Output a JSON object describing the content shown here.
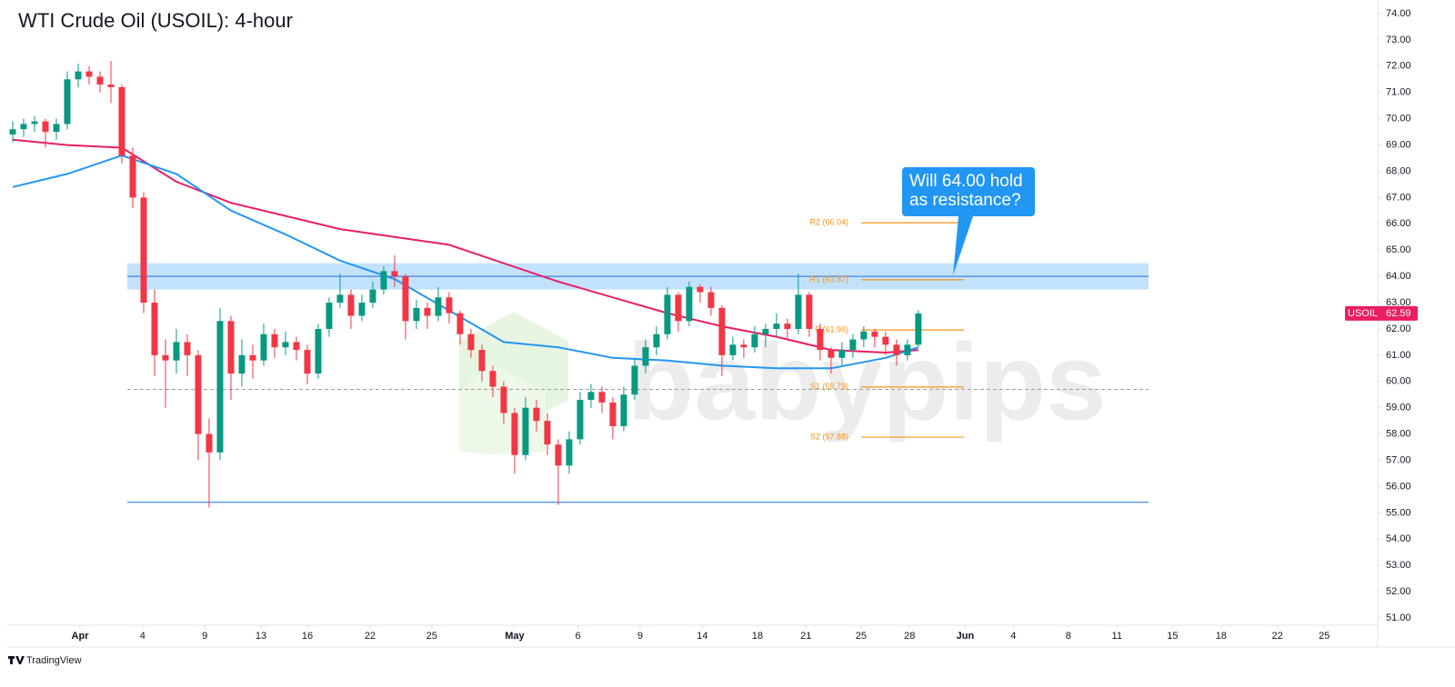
{
  "chart_data": {
    "type": "candlestick",
    "title": "WTI Crude Oil (USOIL): 4-hour",
    "symbol": "USOIL",
    "up_color": "#089981",
    "down_color": "#f23645",
    "open": [
      69.4,
      69.6,
      69.8,
      69.9,
      69.5,
      69.8,
      71.5,
      71.8,
      71.6,
      71.3,
      71.2,
      68.6,
      67.0,
      63.0,
      61.0,
      60.8,
      61.5,
      61.0,
      58.0,
      57.3,
      62.3,
      60.3,
      61.0,
      60.8,
      61.8,
      61.3,
      61.5,
      61.2,
      60.3,
      62.0,
      63.0,
      63.3,
      62.5,
      63.0,
      63.5,
      64.2,
      64.0,
      62.3,
      62.8,
      62.5,
      63.2,
      62.6,
      61.8,
      61.2,
      60.4,
      59.8,
      58.8,
      57.2,
      59.0,
      58.5,
      57.6,
      56.8,
      57.8,
      59.3,
      59.6,
      59.2,
      58.3,
      59.5,
      60.6,
      61.3,
      61.8,
      63.3,
      62.3,
      63.6,
      63.4,
      62.8,
      61.0,
      61.4,
      61.3,
      61.8,
      62.0,
      62.2,
      62.0,
      63.3,
      62.0,
      61.2,
      60.9,
      61.2,
      61.6,
      61.9,
      61.7,
      61.4,
      61.0,
      61.4
    ],
    "high": [
      69.9,
      70.0,
      70.1,
      70.0,
      70.0,
      71.8,
      72.1,
      72.0,
      71.8,
      72.2,
      71.3,
      68.9,
      67.2,
      63.5,
      61.6,
      62.0,
      61.8,
      61.2,
      58.6,
      62.8,
      62.5,
      61.6,
      61.4,
      62.2,
      62.0,
      61.9,
      61.7,
      61.4,
      62.2,
      63.2,
      64.1,
      63.5,
      63.3,
      63.8,
      64.4,
      64.8,
      64.1,
      63.1,
      63.0,
      63.6,
      63.4,
      62.7,
      62.0,
      61.4,
      60.6,
      60.0,
      59.0,
      59.4,
      59.3,
      58.8,
      57.8,
      58.1,
      59.6,
      59.9,
      59.8,
      59.4,
      59.8,
      60.9,
      61.6,
      62.1,
      63.6,
      63.4,
      63.8,
      63.7,
      63.6,
      62.9,
      61.7,
      61.6,
      62.1,
      62.2,
      62.6,
      62.4,
      64.1,
      63.4,
      62.2,
      61.3,
      61.5,
      61.8,
      62.1,
      62.0,
      61.9,
      61.6,
      61.6,
      62.7
    ],
    "low": [
      69.1,
      69.3,
      69.5,
      68.9,
      69.2,
      69.6,
      71.2,
      71.3,
      71.0,
      70.6,
      68.3,
      66.6,
      62.6,
      60.2,
      59.0,
      60.3,
      60.2,
      57.0,
      55.2,
      57.0,
      59.3,
      59.8,
      60.1,
      60.6,
      60.9,
      61.0,
      60.8,
      59.9,
      60.1,
      61.7,
      62.8,
      62.0,
      62.3,
      62.8,
      63.3,
      63.6,
      61.6,
      62.0,
      62.0,
      62.3,
      62.2,
      61.4,
      60.9,
      60.0,
      59.4,
      58.4,
      56.5,
      57.0,
      58.1,
      57.2,
      55.3,
      56.5,
      57.6,
      59.0,
      58.8,
      57.8,
      58.1,
      59.3,
      60.3,
      61.0,
      61.6,
      61.9,
      62.1,
      63.0,
      62.5,
      60.2,
      60.8,
      60.9,
      61.1,
      61.3,
      61.7,
      61.6,
      61.8,
      61.7,
      60.8,
      60.3,
      60.6,
      60.9,
      61.3,
      61.3,
      61.0,
      60.6,
      60.8,
      61.3
    ],
    "close": [
      69.6,
      69.8,
      69.9,
      69.5,
      69.8,
      71.5,
      71.8,
      71.6,
      71.3,
      71.2,
      68.6,
      67.0,
      63.0,
      61.0,
      60.8,
      61.5,
      61.0,
      58.0,
      57.3,
      62.3,
      60.3,
      61.0,
      60.8,
      61.8,
      61.3,
      61.5,
      61.2,
      60.3,
      62.0,
      63.0,
      63.3,
      62.5,
      63.0,
      63.5,
      64.2,
      64.0,
      62.3,
      62.8,
      62.5,
      63.2,
      62.6,
      61.8,
      61.2,
      60.4,
      59.8,
      58.8,
      57.2,
      59.0,
      58.5,
      57.6,
      56.8,
      57.8,
      59.3,
      59.6,
      59.2,
      58.3,
      59.5,
      60.6,
      61.3,
      61.8,
      63.3,
      62.3,
      63.6,
      63.4,
      62.8,
      61.0,
      61.4,
      61.3,
      61.8,
      62.0,
      62.2,
      62.0,
      63.3,
      62.0,
      61.2,
      60.9,
      61.2,
      61.6,
      61.9,
      61.7,
      61.4,
      61.0,
      61.4,
      62.59
    ],
    "moving_averages": [
      {
        "color": "#e91e63",
        "x": [
          0,
          5,
          10,
          15,
          20,
          25,
          30,
          35,
          40,
          45,
          50,
          55,
          60,
          65,
          70,
          75,
          80,
          83
        ],
        "values": [
          69.2,
          69.0,
          68.9,
          67.6,
          66.8,
          66.3,
          65.8,
          65.5,
          65.2,
          64.5,
          63.8,
          63.2,
          62.6,
          62.1,
          61.7,
          61.2,
          61.1,
          61.2
        ]
      },
      {
        "color": "#2196f3",
        "x": [
          0,
          5,
          10,
          15,
          20,
          25,
          30,
          35,
          40,
          45,
          50,
          55,
          60,
          65,
          70,
          75,
          80,
          83
        ],
        "values": [
          67.4,
          67.9,
          68.6,
          67.9,
          66.5,
          65.6,
          64.6,
          63.9,
          62.7,
          61.5,
          61.3,
          60.9,
          60.8,
          60.6,
          60.5,
          60.5,
          60.9,
          61.3
        ]
      }
    ],
    "resistance_zone": [
      63.5,
      64.5
    ],
    "levels": [
      {
        "value": 64.0,
        "style": "solid"
      },
      {
        "value": 55.4,
        "style": "solid"
      },
      {
        "value": 59.7,
        "style": "dashed"
      }
    ],
    "pivots": [
      {
        "label": "R2 (66.04)",
        "value": 66.04
      },
      {
        "label": "R1 (63.87)",
        "value": 63.87
      },
      {
        "label": "P (61.96)",
        "value": 61.96
      },
      {
        "label": "S1 (59.79)",
        "value": 59.79
      },
      {
        "label": "S2 (57.88)",
        "value": 57.88
      }
    ],
    "annotation": [
      "Will 64.00 hold",
      "as resistance?"
    ],
    "watermark": "babypips",
    "footer": "TradingView",
    "xlim": [
      -0.5,
      125.1
    ],
    "xticks": [
      {
        "value": 6.17,
        "label": "Apr"
      },
      {
        "value": 11.9,
        "label": "4"
      },
      {
        "value": 17.6,
        "label": "9"
      },
      {
        "value": 22.75,
        "label": "13"
      },
      {
        "value": 27,
        "label": "16"
      },
      {
        "value": 32.75,
        "label": "22"
      },
      {
        "value": 38.4,
        "label": "25"
      },
      {
        "value": 46,
        "label": "May"
      },
      {
        "value": 51.8,
        "label": "6"
      },
      {
        "value": 57.5,
        "label": "9"
      },
      {
        "value": 63.2,
        "label": "14"
      },
      {
        "value": 68.25,
        "label": "18"
      },
      {
        "value": 72.7,
        "label": "21"
      },
      {
        "value": 77.75,
        "label": "25"
      },
      {
        "value": 82.2,
        "label": "28"
      },
      {
        "value": 87.3,
        "label": "Jun"
      },
      {
        "value": 91.7,
        "label": "4"
      },
      {
        "value": 96.75,
        "label": "8"
      },
      {
        "value": 101.2,
        "label": "11"
      },
      {
        "value": 106.3,
        "label": "15"
      },
      {
        "value": 110.75,
        "label": "18"
      },
      {
        "value": 115.9,
        "label": "22"
      },
      {
        "value": 120.2,
        "label": "25"
      }
    ],
    "ylim": [
      51,
      74
    ],
    "yticks": [
      {
        "value": 51,
        "label": "51.00"
      },
      {
        "value": 52,
        "label": "52.00"
      },
      {
        "value": 53,
        "label": "53.00"
      },
      {
        "value": 54,
        "label": "54.00"
      },
      {
        "value": 55,
        "label": "55.00"
      },
      {
        "value": 56,
        "label": "56.00"
      },
      {
        "value": 57,
        "label": "57.00"
      },
      {
        "value": 58,
        "label": "58.00"
      },
      {
        "value": 59,
        "label": "59.00"
      },
      {
        "value": 60,
        "label": "60.00"
      },
      {
        "value": 61,
        "label": "61.00"
      },
      {
        "value": 62,
        "label": "62.00"
      },
      {
        "value": 63,
        "label": "63.00"
      },
      {
        "value": 64,
        "label": "64.00"
      },
      {
        "value": 65,
        "label": "65.00"
      },
      {
        "value": 66,
        "label": "66.00"
      },
      {
        "value": 67,
        "label": "67.00"
      },
      {
        "value": 68,
        "label": "68.00"
      },
      {
        "value": 69,
        "label": "69.00"
      },
      {
        "value": 70,
        "label": "70.00"
      },
      {
        "value": 71,
        "label": "71.00"
      },
      {
        "value": 72,
        "label": "72.00"
      },
      {
        "value": 73,
        "label": "73.00"
      },
      {
        "value": 74,
        "label": "74.00"
      }
    ]
  }
}
